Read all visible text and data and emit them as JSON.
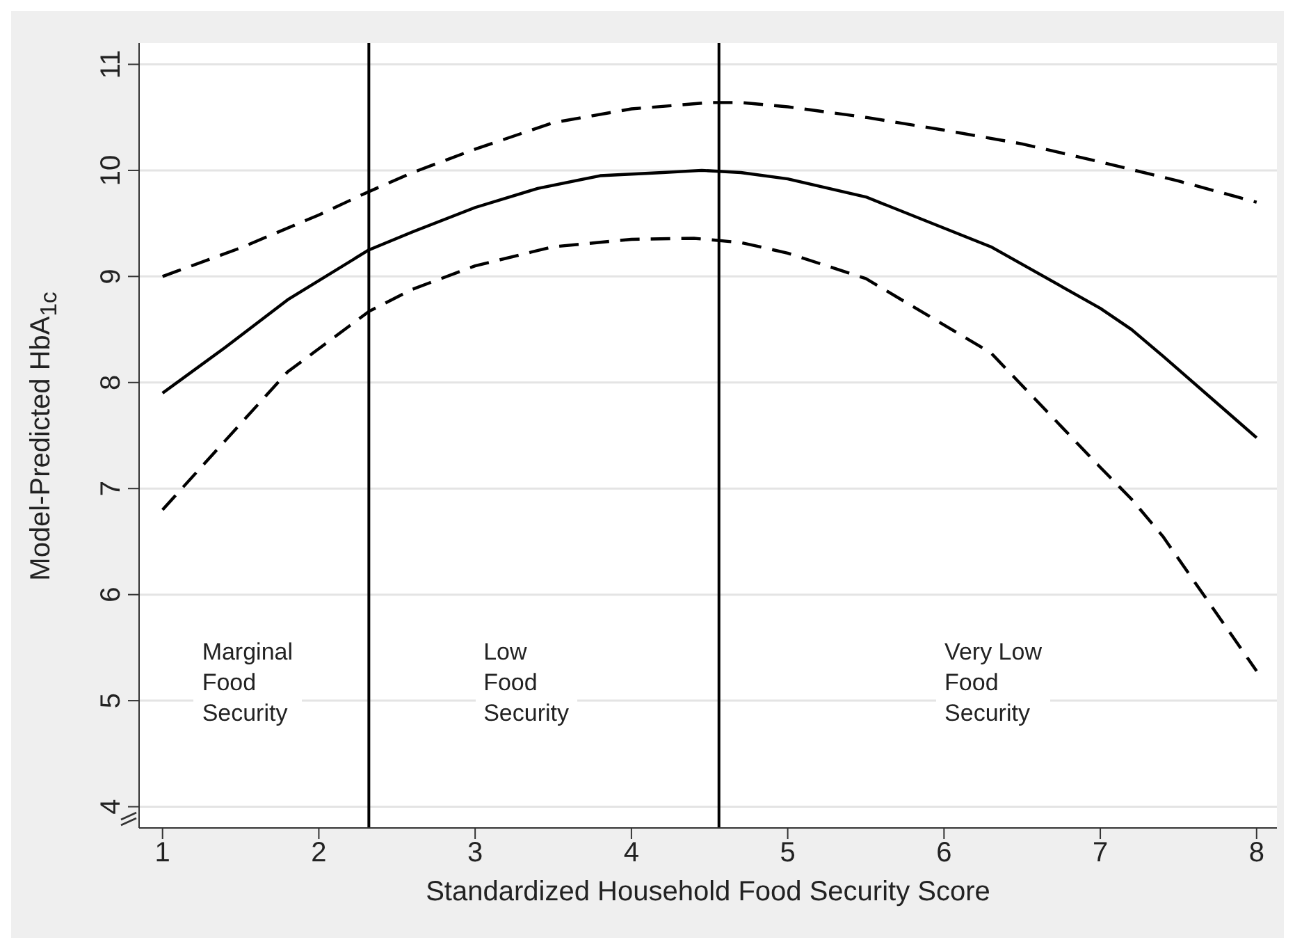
{
  "chart_data": {
    "type": "line",
    "xlabel": "Standardized Household Food Security Score",
    "ylabel": "Model-Predicted HbA$_{1c}$",
    "series": [
      {
        "color": "#000000",
        "line_style": "solid",
        "x": [
          1,
          1.4,
          1.8,
          2.32,
          2.6,
          3,
          3.4,
          3.8,
          4.2,
          4.45,
          4.7,
          5,
          5.5,
          6.3,
          7,
          7.2,
          7.4,
          8
        ],
        "values": [
          7.9,
          8.33,
          8.78,
          9.25,
          9.42,
          9.65,
          9.83,
          9.95,
          9.98,
          10.0,
          9.98,
          9.92,
          9.75,
          9.28,
          8.7,
          8.5,
          8.25,
          7.48
        ]
      },
      {
        "color": "#000000",
        "line_style": "dashed",
        "x": [
          1,
          1.5,
          2,
          2.32,
          2.6,
          3,
          3.5,
          4,
          4.5,
          4.7,
          5,
          5.5,
          6,
          6.5,
          7,
          7.5,
          8
        ],
        "values": [
          9.0,
          9.27,
          9.58,
          9.8,
          9.98,
          10.2,
          10.45,
          10.58,
          10.64,
          10.64,
          10.6,
          10.5,
          10.38,
          10.25,
          10.08,
          9.9,
          9.7
        ]
      },
      {
        "color": "#000000",
        "line_style": "dashed",
        "x": [
          1,
          1.4,
          1.8,
          2.32,
          2.6,
          3,
          3.5,
          4,
          4.4,
          4.7,
          5,
          5.5,
          6.3,
          7,
          7.2,
          7.4,
          8
        ],
        "values": [
          6.8,
          7.45,
          8.1,
          8.67,
          8.88,
          9.1,
          9.28,
          9.35,
          9.36,
          9.32,
          9.22,
          8.98,
          8.28,
          7.2,
          6.9,
          6.55,
          5.28
        ]
      }
    ],
    "xlim": [
      0.85,
      8.13
    ],
    "xticks": [
      1,
      2,
      3,
      4,
      5,
      6,
      7,
      8
    ],
    "ylim": [
      3.8,
      11.2
    ],
    "yticks": [
      4,
      5,
      6,
      7,
      8,
      9,
      10,
      11
    ],
    "grid": "y",
    "legend": false,
    "ref_lines": [
      {
        "axis": "x",
        "value": 2.32,
        "color": "#000000"
      },
      {
        "axis": "x",
        "value": 4.56,
        "color": "#000000"
      }
    ],
    "annotations": [
      "Marginal\nFood\nSecurity",
      "Low\nFood\nSecurity",
      "Very Low\nFood\nSecurity"
    ]
  }
}
